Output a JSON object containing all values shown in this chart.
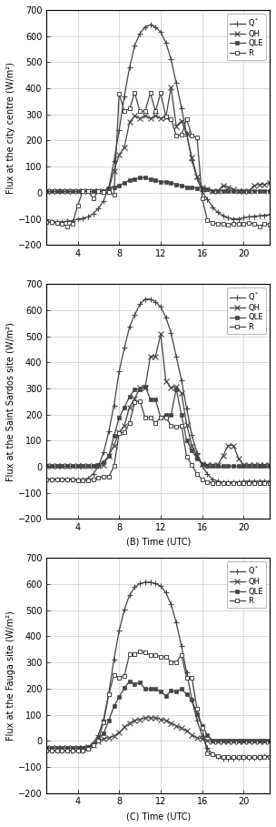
{
  "time": [
    1,
    1.5,
    2,
    2.5,
    3,
    3.5,
    4,
    4.5,
    5,
    5.5,
    6,
    6.5,
    7,
    7.5,
    8,
    8.5,
    9,
    9.5,
    10,
    10.5,
    11,
    11.5,
    12,
    12.5,
    13,
    13.5,
    14,
    14.5,
    15,
    15.5,
    16,
    16.5,
    17,
    17.5,
    18,
    18.5,
    19,
    19.5,
    20,
    20.5,
    21,
    21.5,
    22,
    22.5
  ],
  "panel_a": {
    "ylabel": "Flux at the city centre (W/m²)",
    "xlabel": "",
    "Qstar": [
      -110,
      -112,
      -110,
      -112,
      -108,
      -107,
      -100,
      -98,
      -92,
      -80,
      -60,
      -30,
      20,
      120,
      240,
      370,
      480,
      565,
      610,
      635,
      643,
      635,
      615,
      575,
      510,
      420,
      325,
      225,
      125,
      55,
      5,
      -25,
      -55,
      -75,
      -88,
      -96,
      -100,
      -100,
      -95,
      -92,
      -90,
      -88,
      -86,
      -83
    ],
    "QH": [
      5,
      5,
      5,
      5,
      5,
      5,
      5,
      5,
      5,
      5,
      8,
      8,
      12,
      85,
      145,
      175,
      270,
      295,
      285,
      295,
      285,
      295,
      285,
      290,
      405,
      255,
      275,
      225,
      135,
      62,
      22,
      12,
      8,
      8,
      28,
      22,
      12,
      8,
      8,
      8,
      28,
      32,
      32,
      38
    ],
    "QLE": [
      5,
      5,
      5,
      5,
      5,
      5,
      5,
      5,
      5,
      5,
      5,
      8,
      18,
      22,
      28,
      38,
      48,
      52,
      58,
      58,
      52,
      48,
      42,
      42,
      38,
      32,
      28,
      22,
      22,
      18,
      18,
      12,
      8,
      8,
      8,
      8,
      8,
      8,
      8,
      8,
      8,
      8,
      8,
      8
    ],
    "R": [
      -110,
      -112,
      -115,
      -118,
      -128,
      -118,
      -50,
      8,
      8,
      -22,
      8,
      2,
      2,
      -8,
      380,
      312,
      322,
      382,
      312,
      312,
      382,
      312,
      382,
      292,
      282,
      218,
      222,
      282,
      218,
      212,
      -22,
      -105,
      -115,
      -118,
      -118,
      -122,
      -118,
      -118,
      -118,
      -115,
      -118,
      -128,
      -118,
      -122
    ]
  },
  "panel_b": {
    "ylabel": "Flux at the Saint Sardos site (W/m²)",
    "xlabel": "(B) Time (UTC)",
    "Qstar": [
      -48,
      -48,
      -48,
      -48,
      -48,
      -48,
      -48,
      -48,
      -44,
      -28,
      2,
      55,
      135,
      235,
      365,
      455,
      535,
      582,
      622,
      642,
      642,
      632,
      612,
      572,
      512,
      422,
      332,
      222,
      122,
      52,
      2,
      -28,
      -48,
      -55,
      -58,
      -58,
      -58,
      -58,
      -55,
      -55,
      -55,
      -55,
      -55,
      -55
    ],
    "QH": [
      2,
      2,
      2,
      2,
      2,
      2,
      2,
      2,
      2,
      2,
      2,
      8,
      42,
      82,
      132,
      158,
      228,
      262,
      302,
      302,
      422,
      422,
      508,
      328,
      302,
      308,
      282,
      162,
      82,
      42,
      12,
      8,
      8,
      8,
      42,
      82,
      82,
      32,
      8,
      8,
      8,
      8,
      8,
      8
    ],
    "QLE": [
      2,
      2,
      2,
      2,
      2,
      2,
      2,
      2,
      2,
      2,
      8,
      18,
      42,
      118,
      188,
      228,
      268,
      298,
      298,
      308,
      258,
      258,
      188,
      198,
      198,
      298,
      198,
      102,
      62,
      32,
      12,
      2,
      2,
      2,
      2,
      2,
      2,
      2,
      2,
      2,
      2,
      2,
      2,
      2
    ],
    "R": [
      -48,
      -48,
      -48,
      -48,
      -48,
      -48,
      -52,
      -52,
      -52,
      -48,
      -42,
      -38,
      -38,
      2,
      128,
      132,
      168,
      248,
      252,
      188,
      188,
      168,
      188,
      188,
      158,
      152,
      158,
      38,
      8,
      -28,
      -48,
      -58,
      -62,
      -62,
      -62,
      -62,
      -62,
      -62,
      -62,
      -62,
      -62,
      -62,
      -62,
      -62
    ]
  },
  "panel_c": {
    "ylabel": "Flux at the Fauga site (W/m²)",
    "xlabel": "(C) Time (UTC)",
    "Qstar": [
      -38,
      -38,
      -38,
      -38,
      -38,
      -38,
      -38,
      -38,
      -28,
      -8,
      22,
      82,
      182,
      312,
      422,
      502,
      558,
      588,
      602,
      607,
      607,
      602,
      592,
      567,
      522,
      452,
      362,
      262,
      158,
      78,
      18,
      -28,
      -52,
      -62,
      -68,
      -68,
      -68,
      -65,
      -65,
      -65,
      -65,
      -65,
      -60,
      -60
    ],
    "QH": [
      -28,
      -28,
      -28,
      -28,
      -28,
      -28,
      -28,
      -28,
      -22,
      -18,
      -2,
      8,
      12,
      18,
      32,
      52,
      68,
      78,
      82,
      88,
      88,
      88,
      82,
      78,
      68,
      58,
      48,
      38,
      22,
      12,
      8,
      2,
      -2,
      -2,
      -2,
      -2,
      -2,
      -2,
      -2,
      -2,
      -2,
      -2,
      -2,
      -2
    ],
    "QLE": [
      -28,
      -28,
      -28,
      -28,
      -28,
      -28,
      -28,
      -28,
      -22,
      -12,
      8,
      28,
      78,
      132,
      168,
      202,
      228,
      218,
      222,
      198,
      198,
      198,
      188,
      172,
      192,
      188,
      198,
      178,
      158,
      102,
      58,
      22,
      2,
      2,
      2,
      2,
      2,
      2,
      2,
      2,
      2,
      2,
      2,
      2
    ],
    "R": [
      -38,
      -38,
      -38,
      -38,
      -38,
      -38,
      -38,
      -38,
      -32,
      -18,
      2,
      72,
      178,
      252,
      242,
      248,
      332,
      332,
      342,
      338,
      328,
      328,
      322,
      322,
      302,
      302,
      328,
      242,
      242,
      122,
      48,
      -48,
      -52,
      -58,
      -62,
      -62,
      -62,
      -62,
      -62,
      -62,
      -62,
      -62,
      -62,
      -62
    ]
  },
  "xlim": [
    1,
    22.5
  ],
  "ylim": [
    -200,
    700
  ],
  "xticks": [
    4,
    8,
    12,
    16,
    20
  ],
  "yticks": [
    -200,
    -100,
    0,
    100,
    200,
    300,
    400,
    500,
    600,
    700
  ],
  "grid_color": "#cccccc",
  "bg_color": "#ffffff",
  "fontsize": 7
}
